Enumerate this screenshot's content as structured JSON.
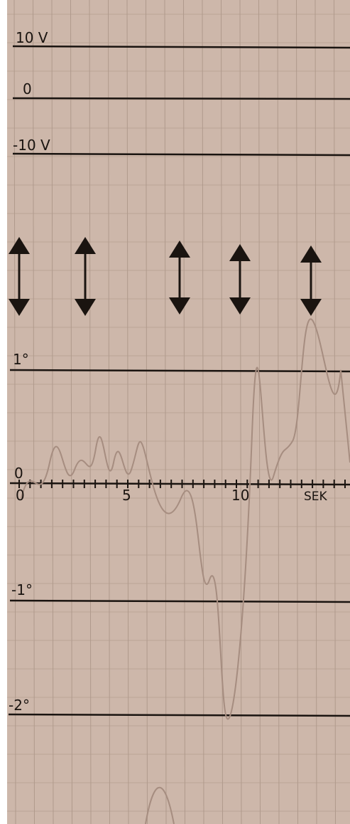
{
  "voltage_scale": {
    "labels": [
      "10 V",
      "0",
      "-10 V"
    ]
  },
  "angle_scale": {
    "labels": [
      "1°",
      "0",
      "-1°",
      "-2°"
    ]
  },
  "time_axis": {
    "labels": [
      "0",
      "5",
      "10",
      "SEK"
    ]
  }
}
